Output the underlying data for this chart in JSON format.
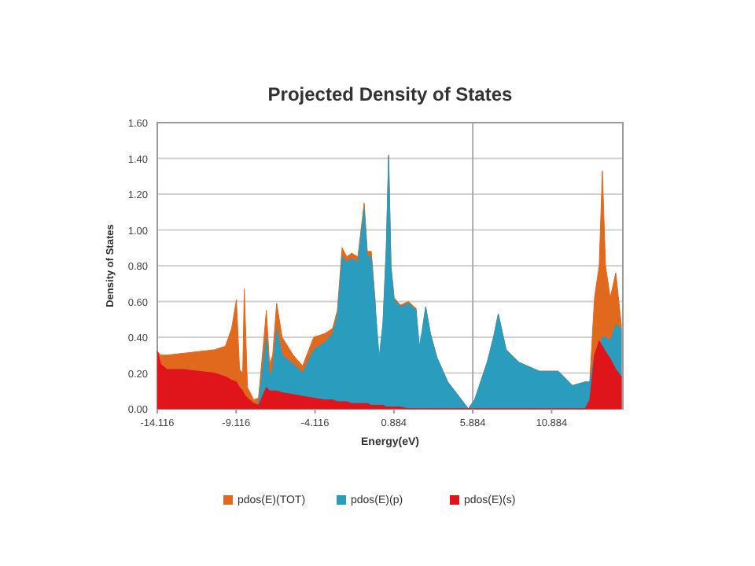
{
  "chart_data": {
    "type": "area",
    "title": "Projected Density of States",
    "xlabel": "Energy(eV)",
    "ylabel": "Density of States",
    "x": [
      -14.1,
      -13.9,
      -13.5,
      -12.5,
      -11.5,
      -10.5,
      -9.8,
      -9.4,
      -9.1,
      -8.9,
      -8.7,
      -8.6,
      -8.4,
      -8.0,
      -7.7,
      -7.4,
      -7.2,
      -7.0,
      -6.8,
      -6.55,
      -6.2,
      -5.5,
      -4.9,
      -4.2,
      -3.5,
      -3.0,
      -2.7,
      -2.4,
      -2.1,
      -1.8,
      -1.4,
      -1.0,
      -0.8,
      -0.55,
      -0.3,
      -0.05,
      0.2,
      0.4,
      0.55,
      0.7,
      0.9,
      1.3,
      1.8,
      2.3,
      2.5,
      2.7,
      2.9,
      3.2,
      3.6,
      4.3,
      5.0,
      5.6,
      6.0,
      6.8,
      7.2,
      7.5,
      8.0,
      8.8,
      10.1,
      11.3,
      12.2,
      13.0,
      13.3,
      13.6,
      13.9,
      14.1,
      14.3,
      14.6,
      14.95,
      15.3
    ],
    "series": [
      {
        "name": "pdos(E)(TOT)",
        "color": "#e0691e",
        "values": [
          0.32,
          0.3,
          0.3,
          0.31,
          0.32,
          0.33,
          0.35,
          0.45,
          0.61,
          0.22,
          0.2,
          0.67,
          0.12,
          0.05,
          0.06,
          0.35,
          0.55,
          0.25,
          0.3,
          0.59,
          0.4,
          0.3,
          0.24,
          0.4,
          0.42,
          0.45,
          0.55,
          0.9,
          0.85,
          0.87,
          0.85,
          1.15,
          0.88,
          0.88,
          0.6,
          null,
          0.5,
          0.9,
          1.42,
          0.8,
          0.62,
          0.58,
          0.6,
          0.56,
          null,
          0.45,
          0.57,
          0.42,
          0.29,
          0.15,
          0.07,
          0,
          0.05,
          0.26,
          0.4,
          0.53,
          0.33,
          0.26,
          0.21,
          0.21,
          0.13,
          0.15,
          0.15,
          0.62,
          0.8,
          1.33,
          0.8,
          0.62,
          0.76,
          0.47
        ]
      },
      {
        "name": "pdos(E)(p)",
        "color": "#2a9cbd",
        "values": [
          0,
          0,
          0,
          0,
          0,
          0,
          0,
          0,
          0,
          0,
          0,
          0,
          0,
          0.02,
          0.03,
          0.25,
          0.4,
          0.18,
          0.22,
          0.45,
          0.3,
          0.25,
          0.2,
          0.33,
          0.37,
          0.42,
          0.52,
          0.85,
          0.82,
          0.84,
          0.82,
          1.12,
          0.85,
          0.85,
          0.58,
          0.29,
          0.49,
          0.89,
          1.41,
          0.79,
          0.61,
          0.57,
          0.59,
          0.55,
          0.35,
          0.45,
          0.57,
          0.42,
          0.29,
          0.15,
          0.07,
          0,
          0.05,
          0.26,
          0.4,
          0.53,
          0.33,
          0.26,
          0.21,
          0.21,
          0.13,
          0.15,
          0.15,
          0.3,
          0.35,
          0.4,
          0.4,
          0.38,
          0.47,
          0.45
        ]
      },
      {
        "name": "pdos(E)(s)",
        "color": "#e0151b",
        "values": [
          0.32,
          0.25,
          0.22,
          0.22,
          0.21,
          0.2,
          0.18,
          0.16,
          0.15,
          0.12,
          0.1,
          0.08,
          0.06,
          0.03,
          0.02,
          0.08,
          0.12,
          0.1,
          0.1,
          0.1,
          0.09,
          0.08,
          0.07,
          0.06,
          0.05,
          0.05,
          0.04,
          0.04,
          0.04,
          0.03,
          0.03,
          0.03,
          0.03,
          0.02,
          0.02,
          0.02,
          0.02,
          0.01,
          0.01,
          0.01,
          0.01,
          0.01,
          0,
          0,
          0,
          0,
          0,
          0,
          0,
          0,
          0,
          0,
          0,
          0,
          0,
          0,
          0,
          0,
          0,
          0,
          0,
          0,
          0.05,
          0.3,
          0.38,
          0.35,
          0.32,
          0.28,
          0.22,
          0.18
        ]
      }
    ],
    "xlim": [
      -14.116,
      15.4
    ],
    "xticks": [
      -14.116,
      -9.116,
      -4.116,
      0.884,
      5.884,
      10.884
    ],
    "ylim": [
      0,
      1.6
    ],
    "yticks": [
      {
        "value": 0,
        "label": "0.00"
      },
      {
        "value": 0.2,
        "label": "0.20"
      },
      {
        "value": 0.4,
        "label": "0.40"
      },
      {
        "value": 0.6,
        "label": "0.60"
      },
      {
        "value": 0.8,
        "label": "0.80"
      },
      {
        "value": 1,
        "label": "1.00"
      },
      {
        "value": 1.2,
        "label": "1.20"
      },
      {
        "value": 1.4,
        "label": "1.40"
      },
      {
        "value": 1.6,
        "label": "1.60"
      }
    ],
    "grid": "y",
    "legend": "bottom",
    "ref_lines": [
      {
        "axis": "x",
        "value": 5.884,
        "color": "#aaaaaa"
      }
    ]
  }
}
